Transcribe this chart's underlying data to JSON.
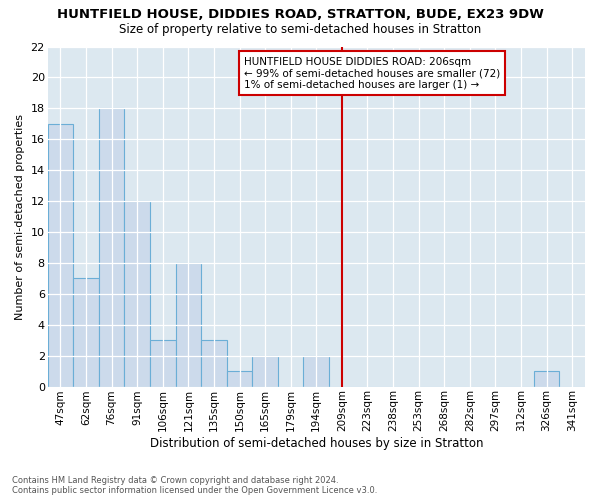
{
  "title": "HUNTFIELD HOUSE, DIDDIES ROAD, STRATTON, BUDE, EX23 9DW",
  "subtitle": "Size of property relative to semi-detached houses in Stratton",
  "xlabel": "Distribution of semi-detached houses by size in Stratton",
  "ylabel": "Number of semi-detached properties",
  "categories": [
    "47sqm",
    "62sqm",
    "76sqm",
    "91sqm",
    "106sqm",
    "121sqm",
    "135sqm",
    "150sqm",
    "165sqm",
    "179sqm",
    "194sqm",
    "209sqm",
    "223sqm",
    "238sqm",
    "253sqm",
    "268sqm",
    "282sqm",
    "297sqm",
    "312sqm",
    "326sqm",
    "341sqm"
  ],
  "values": [
    17,
    7,
    18,
    12,
    3,
    8,
    3,
    1,
    2,
    0,
    2,
    0,
    0,
    0,
    0,
    0,
    0,
    0,
    0,
    1,
    0
  ],
  "bar_color": "#ccdaeb",
  "bar_edge_color": "#6baed6",
  "vline_index": 11,
  "vline_color": "#cc0000",
  "annotation_text": "HUNTFIELD HOUSE DIDDIES ROAD: 206sqm\n← 99% of semi-detached houses are smaller (72)\n1% of semi-detached houses are larger (1) →",
  "annotation_box_color": "#cc0000",
  "ylim": [
    0,
    22
  ],
  "yticks": [
    0,
    2,
    4,
    6,
    8,
    10,
    12,
    14,
    16,
    18,
    20,
    22
  ],
  "footer": "Contains HM Land Registry data © Crown copyright and database right 2024.\nContains public sector information licensed under the Open Government Licence v3.0.",
  "bg_color": "#ffffff",
  "plot_bg_color": "#dce8f0"
}
